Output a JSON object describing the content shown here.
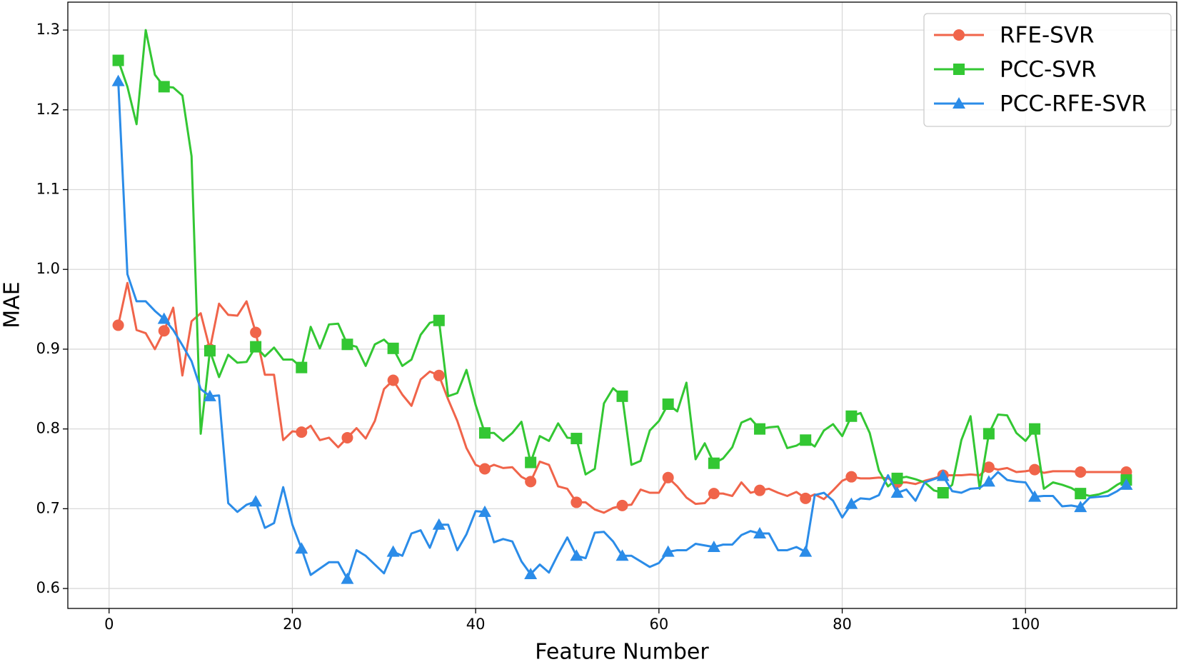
{
  "chart_data": {
    "type": "line",
    "x_label": "Feature Number",
    "y_label": "MAE",
    "x": [
      1,
      2,
      3,
      4,
      5,
      6,
      7,
      8,
      9,
      10,
      11,
      12,
      13,
      14,
      15,
      16,
      17,
      18,
      19,
      20,
      21,
      22,
      23,
      24,
      25,
      26,
      27,
      28,
      29,
      30,
      31,
      32,
      33,
      34,
      35,
      36,
      37,
      38,
      39,
      40,
      41,
      42,
      43,
      44,
      45,
      46,
      47,
      48,
      49,
      50,
      51,
      52,
      53,
      54,
      55,
      56,
      57,
      58,
      59,
      60,
      61,
      62,
      63,
      64,
      65,
      66,
      67,
      68,
      69,
      70,
      71,
      72,
      73,
      74,
      75,
      76,
      77,
      78,
      79,
      80,
      81,
      82,
      83,
      84,
      85,
      86,
      87,
      88,
      89,
      90,
      91,
      92,
      93,
      94,
      95,
      96,
      97,
      98,
      99,
      100,
      101,
      102,
      103,
      104,
      105,
      106,
      107,
      108,
      109,
      110,
      111
    ],
    "series": [
      {
        "name": "RFE-SVR",
        "color": "#f0644a",
        "marker": "circle",
        "values": [
          0.93,
          0.983,
          0.924,
          0.92,
          0.9,
          0.923,
          0.952,
          0.867,
          0.935,
          0.945,
          0.9,
          0.957,
          0.943,
          0.942,
          0.96,
          0.921,
          0.868,
          0.868,
          0.786,
          0.797,
          0.796,
          0.804,
          0.786,
          0.789,
          0.777,
          0.789,
          0.801,
          0.788,
          0.81,
          0.85,
          0.861,
          0.843,
          0.829,
          0.862,
          0.872,
          0.867,
          0.837,
          0.81,
          0.776,
          0.755,
          0.75,
          0.755,
          0.751,
          0.752,
          0.74,
          0.734,
          0.759,
          0.755,
          0.728,
          0.725,
          0.708,
          0.708,
          0.699,
          0.695,
          0.701,
          0.704,
          0.705,
          0.724,
          0.72,
          0.72,
          0.739,
          0.728,
          0.714,
          0.706,
          0.707,
          0.719,
          0.719,
          0.716,
          0.733,
          0.72,
          0.723,
          0.725,
          0.72,
          0.716,
          0.721,
          0.713,
          0.718,
          0.712,
          0.723,
          0.735,
          0.74,
          0.738,
          0.738,
          0.739,
          0.738,
          0.733,
          0.733,
          0.731,
          0.735,
          0.738,
          0.742,
          0.742,
          0.742,
          0.743,
          0.742,
          0.752,
          0.749,
          0.751,
          0.746,
          0.747,
          0.749,
          0.745,
          0.747,
          0.747,
          0.747,
          0.746,
          0.746,
          0.746,
          0.746,
          0.746,
          0.746
        ]
      },
      {
        "name": "PCC-SVR",
        "color": "#33c733",
        "marker": "square",
        "values": [
          1.262,
          1.229,
          1.182,
          1.3,
          1.244,
          1.229,
          1.228,
          1.218,
          1.142,
          0.794,
          0.898,
          0.865,
          0.893,
          0.883,
          0.884,
          0.903,
          0.891,
          0.902,
          0.887,
          0.887,
          0.877,
          0.928,
          0.901,
          0.931,
          0.932,
          0.906,
          0.903,
          0.879,
          0.906,
          0.912,
          0.901,
          0.879,
          0.887,
          0.918,
          0.933,
          0.936,
          0.841,
          0.845,
          0.874,
          0.83,
          0.795,
          0.795,
          0.785,
          0.795,
          0.809,
          0.758,
          0.791,
          0.785,
          0.807,
          0.789,
          0.788,
          0.743,
          0.75,
          0.832,
          0.851,
          0.841,
          0.755,
          0.76,
          0.798,
          0.81,
          0.831,
          0.822,
          0.858,
          0.762,
          0.782,
          0.757,
          0.763,
          0.777,
          0.808,
          0.813,
          0.8,
          0.802,
          0.803,
          0.776,
          0.779,
          0.786,
          0.778,
          0.798,
          0.806,
          0.791,
          0.816,
          0.82,
          0.795,
          0.748,
          0.728,
          0.738,
          0.74,
          0.737,
          0.733,
          0.723,
          0.72,
          0.73,
          0.786,
          0.816,
          0.725,
          0.794,
          0.818,
          0.817,
          0.795,
          0.785,
          0.8,
          0.725,
          0.733,
          0.73,
          0.726,
          0.719,
          0.716,
          0.718,
          0.722,
          0.73,
          0.736
        ]
      },
      {
        "name": "PCC-RFE-SVR",
        "color": "#2b8ce8",
        "marker": "triangle",
        "values": [
          1.236,
          0.994,
          0.96,
          0.96,
          0.948,
          0.938,
          0.924,
          0.905,
          0.885,
          0.85,
          0.841,
          0.842,
          0.707,
          0.696,
          0.705,
          0.709,
          0.676,
          0.682,
          0.727,
          0.68,
          0.65,
          0.617,
          0.625,
          0.633,
          0.633,
          0.612,
          0.648,
          0.641,
          0.63,
          0.619,
          0.646,
          0.641,
          0.669,
          0.673,
          0.651,
          0.68,
          0.68,
          0.648,
          0.668,
          0.697,
          0.696,
          0.658,
          0.662,
          0.659,
          0.634,
          0.618,
          0.63,
          0.62,
          0.643,
          0.664,
          0.641,
          0.638,
          0.67,
          0.671,
          0.659,
          0.641,
          0.641,
          0.634,
          0.627,
          0.632,
          0.646,
          0.648,
          0.648,
          0.656,
          0.654,
          0.652,
          0.655,
          0.655,
          0.667,
          0.672,
          0.669,
          0.669,
          0.648,
          0.648,
          0.652,
          0.646,
          0.717,
          0.72,
          0.71,
          0.689,
          0.706,
          0.713,
          0.712,
          0.717,
          0.742,
          0.72,
          0.724,
          0.71,
          0.733,
          0.737,
          0.741,
          0.722,
          0.72,
          0.725,
          0.726,
          0.734,
          0.746,
          0.736,
          0.734,
          0.733,
          0.715,
          0.716,
          0.716,
          0.703,
          0.704,
          0.702,
          0.714,
          0.715,
          0.716,
          0.722,
          0.73
        ]
      }
    ],
    "markevery": 5,
    "xlim": [
      -4.5,
      116.5
    ],
    "ylim": [
      0.575,
      1.335
    ],
    "xticks": [
      0,
      20,
      40,
      60,
      80,
      100
    ],
    "yticks": [
      0.6,
      0.7,
      0.8,
      0.9,
      {
        "value": 1,
        "label": "1.0"
      },
      1.1,
      1.2,
      1.3
    ],
    "grid": true,
    "legend": "upper right"
  }
}
